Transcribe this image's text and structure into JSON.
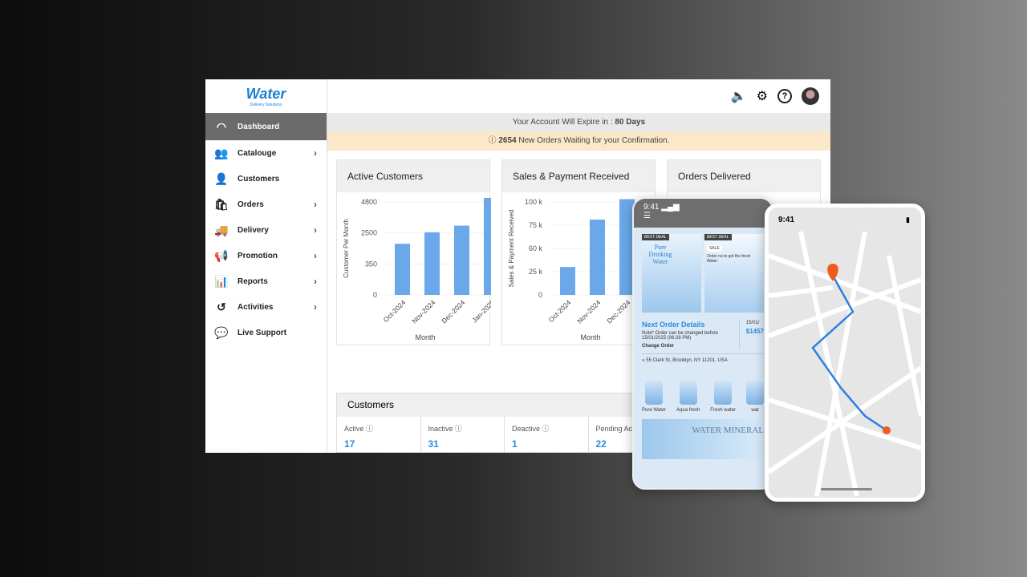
{
  "brand": {
    "name": "Water",
    "tagline": "Delivery Solutions"
  },
  "sidebar": {
    "items": [
      {
        "label": "Dashboard",
        "icon": "gauge-icon",
        "active": true,
        "chevron": false
      },
      {
        "label": "Catalouge",
        "icon": "catalogue-icon",
        "chevron": true
      },
      {
        "label": "Customers",
        "icon": "user-icon",
        "chevron": false
      },
      {
        "label": "Orders",
        "icon": "orders-bag-icon",
        "chevron": true
      },
      {
        "label": "Delivery",
        "icon": "truck-icon",
        "chevron": true
      },
      {
        "label": "Promotion",
        "icon": "megaphone-icon",
        "chevron": true
      },
      {
        "label": "Reports",
        "icon": "chart-icon",
        "chevron": true
      },
      {
        "label": "Activities",
        "icon": "history-icon",
        "chevron": true
      },
      {
        "label": "Live Support",
        "icon": "chat-icon",
        "chevron": false
      }
    ]
  },
  "header": {
    "icons": [
      "speaker-icon",
      "gear-icon",
      "help-icon",
      "avatar"
    ]
  },
  "banner": {
    "expire_text": "Your Account Will Expire in : ",
    "expire_days": "80 Days",
    "orders_count": "2654",
    "orders_text": " New Orders Waiting for your Confirmation."
  },
  "cards": {
    "active": "Active Customers",
    "sales": "Sales & Payment Received",
    "delivered": "Orders Delivered"
  },
  "chart_data": [
    {
      "type": "bar",
      "title": "Active Customers",
      "xlabel": "Month",
      "ylabel": "Customer Per Month",
      "categories": [
        "Oct-2024",
        "Nov-2024",
        "Dec-2024",
        "Jan-2025"
      ],
      "yticks": [
        0,
        350,
        2500,
        4800
      ],
      "values": [
        1750,
        2550,
        3040,
        5100
      ],
      "color": "#6aa8ea",
      "grid": true
    },
    {
      "type": "bar",
      "title": "Sales & Payment Received",
      "xlabel": "Month",
      "ylabel": "Sales & Payment Received",
      "categories": [
        "Oct-2024",
        "Nov-2024",
        "Dec-2024"
      ],
      "yticks": [
        0,
        25000,
        60000,
        75000,
        100000
      ],
      "ytick_labels": [
        "0",
        "25 k",
        "60 k",
        "75 k",
        "100 k"
      ],
      "values": [
        32000,
        81000,
        103000
      ],
      "color": "#6aa8ea",
      "grid": true
    }
  ],
  "customers": {
    "title": "Customers",
    "stats": [
      {
        "label": "Active",
        "value": "17"
      },
      {
        "label": "Inactive",
        "value": "31"
      },
      {
        "label": "Deactive",
        "value": "1"
      },
      {
        "label": "Pending Ac",
        "value": "22"
      }
    ]
  },
  "phone1": {
    "time": "9:41",
    "deal1": "BEST DEAL",
    "deal1_title": "Pure Drinking Water",
    "deal2": "BEST DEAL",
    "sale": "SALE",
    "deal2_text": "Order no to get the fresh Water",
    "next_title": "Next Order Details",
    "note": "Note* Order can be changed before 15/01/2025 (06:28 PM)",
    "change": "Change Order",
    "date": "15/01/",
    "amount": "$1457",
    "address": "55 Clark St, Brooklyn, NY 11201, USA",
    "products": [
      "Pure Water",
      "Aqua fresh",
      "Fresh water",
      "wat"
    ],
    "promo": "WATER MINERAL"
  },
  "phone2": {
    "time": "9:41"
  }
}
